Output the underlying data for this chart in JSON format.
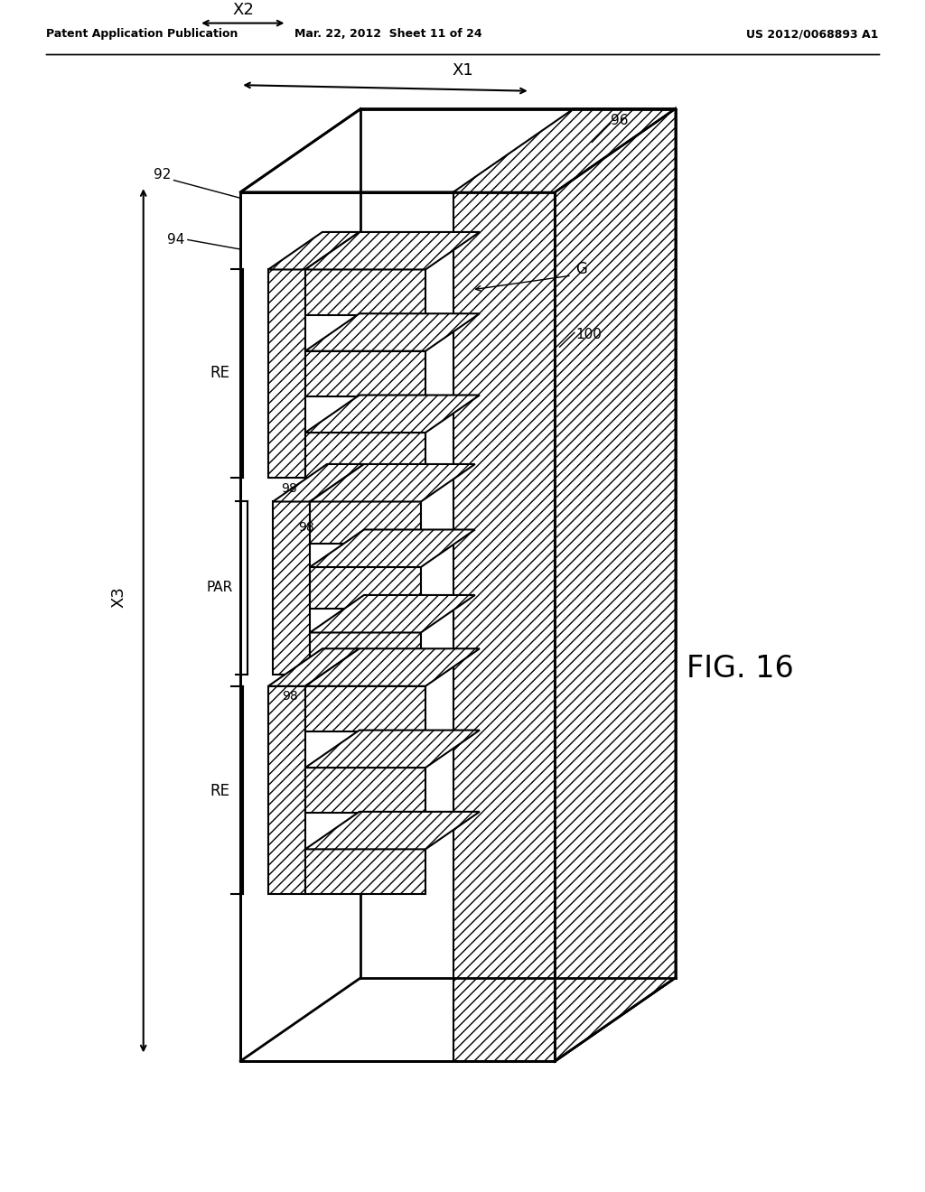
{
  "title_left": "Patent Application Publication",
  "title_mid": "Mar. 22, 2012  Sheet 11 of 24",
  "title_right": "US 2012/0068893 A1",
  "fig_label": "FIG. 16",
  "background_color": "#ffffff",
  "line_color": "#000000",
  "hatch_pattern": "///",
  "hatch_color": "#000000"
}
